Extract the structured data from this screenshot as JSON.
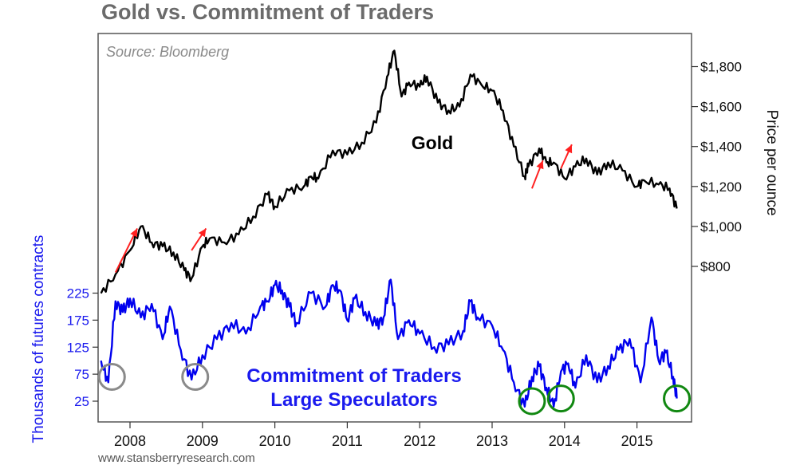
{
  "chart_data": {
    "type": "line",
    "title": "Gold vs. Commitment of Traders",
    "source": "Source: Bloomberg",
    "footer": "www.stansberryresearch.com",
    "x_ticks": [
      "2008",
      "2009",
      "2010",
      "2011",
      "2012",
      "2013",
      "2014",
      "2015"
    ],
    "xlim": [
      2007.6,
      2015.9
    ],
    "right_axis": {
      "label": "Price per ounce",
      "ticks": [
        "$1,800",
        "$1,600",
        "$1,400",
        "$1,200",
        "$1,000",
        "$800"
      ],
      "tick_values": [
        1800,
        1600,
        1400,
        1200,
        1000,
        800
      ]
    },
    "left_axis": {
      "label": "Thousands of futures contracts",
      "ticks": [
        "225",
        "175",
        "125",
        "75",
        "25"
      ],
      "tick_values": [
        225,
        175,
        125,
        75,
        25
      ]
    },
    "series": [
      {
        "name": "Gold",
        "axis": "right",
        "color": "#000000",
        "x": [
          2007.6,
          2007.8,
          2008.0,
          2008.15,
          2008.3,
          2008.45,
          2008.6,
          2008.75,
          2008.85,
          2009.0,
          2009.1,
          2009.3,
          2009.5,
          2009.7,
          2009.9,
          2010.0,
          2010.2,
          2010.4,
          2010.5,
          2010.6,
          2010.8,
          2011.0,
          2011.2,
          2011.4,
          2011.55,
          2011.65,
          2011.75,
          2011.85,
          2012.0,
          2012.1,
          2012.25,
          2012.4,
          2012.55,
          2012.7,
          2012.85,
          2013.0,
          2013.15,
          2013.3,
          2013.45,
          2013.5,
          2013.65,
          2013.75,
          2013.85,
          2014.0,
          2014.15,
          2014.3,
          2014.45,
          2014.6,
          2014.8,
          2015.0,
          2015.1,
          2015.3,
          2015.45,
          2015.55
        ],
        "values": [
          665,
          760,
          880,
          1000,
          920,
          900,
          870,
          780,
          740,
          900,
          940,
          920,
          960,
          1050,
          1160,
          1100,
          1180,
          1200,
          1250,
          1240,
          1380,
          1360,
          1420,
          1520,
          1750,
          1880,
          1650,
          1720,
          1700,
          1750,
          1620,
          1580,
          1600,
          1760,
          1710,
          1680,
          1580,
          1400,
          1250,
          1300,
          1390,
          1320,
          1320,
          1240,
          1300,
          1340,
          1260,
          1320,
          1280,
          1200,
          1230,
          1210,
          1190,
          1090
        ]
      },
      {
        "name": "Commitment of Traders Large Speculators",
        "axis": "left",
        "color": "#0000ee",
        "x": [
          2007.6,
          2007.7,
          2007.8,
          2007.9,
          2008.0,
          2008.15,
          2008.3,
          2008.45,
          2008.55,
          2008.7,
          2008.85,
          2009.0,
          2009.2,
          2009.4,
          2009.6,
          2009.8,
          2009.9,
          2010.0,
          2010.1,
          2010.2,
          2010.3,
          2010.5,
          2010.7,
          2010.8,
          2010.9,
          2011.0,
          2011.1,
          2011.25,
          2011.4,
          2011.5,
          2011.6,
          2011.7,
          2011.85,
          2012.0,
          2012.2,
          2012.4,
          2012.6,
          2012.7,
          2012.8,
          2013.0,
          2013.15,
          2013.3,
          2013.45,
          2013.55,
          2013.65,
          2013.75,
          2013.85,
          2013.95,
          2014.05,
          2014.15,
          2014.3,
          2014.45,
          2014.6,
          2014.75,
          2014.9,
          2015.05,
          2015.2,
          2015.3,
          2015.4,
          2015.5,
          2015.55
        ],
        "values": [
          100,
          60,
          210,
          190,
          215,
          180,
          205,
          140,
          200,
          120,
          65,
          110,
          140,
          170,
          150,
          200,
          210,
          240,
          230,
          200,
          170,
          225,
          200,
          240,
          230,
          175,
          215,
          190,
          165,
          180,
          250,
          140,
          175,
          150,
          125,
          130,
          155,
          210,
          180,
          165,
          120,
          60,
          15,
          70,
          90,
          50,
          15,
          80,
          95,
          50,
          110,
          60,
          90,
          120,
          140,
          60,
          180,
          100,
          115,
          70,
          30
        ]
      }
    ],
    "annotations": [
      "Gold",
      "Commitment of Traders",
      "Large Speculators"
    ],
    "grid": false,
    "colors": {
      "gold_line": "#000000",
      "cot_line": "#0000ee",
      "arrow": "#ff2020",
      "gray_circle": "#8a8a8a",
      "green_circle": "#118811",
      "frame": "#555555",
      "title": "#6b6b6b"
    }
  }
}
